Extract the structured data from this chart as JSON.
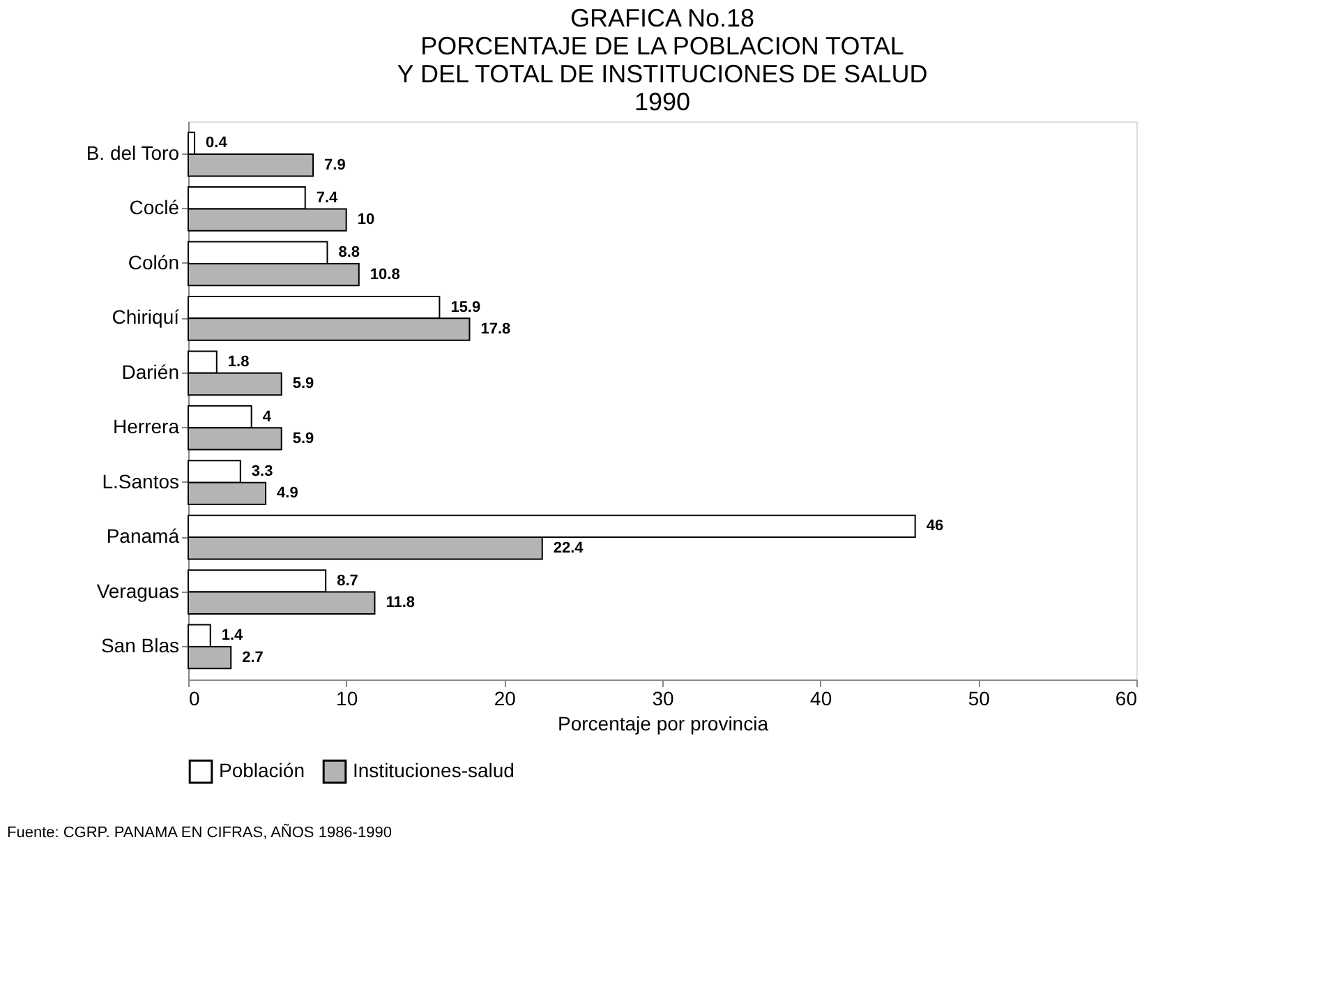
{
  "chart_data": {
    "type": "bar",
    "orientation": "horizontal",
    "title": [
      "GRAFICA No.18",
      "PORCENTAJE DE LA POBLACION TOTAL",
      "Y DEL TOTAL DE INSTITUCIONES DE SALUD",
      "1990"
    ],
    "categories": [
      "B. del Toro",
      "Coclé",
      "Colón",
      "Chiriquí",
      "Darién",
      "Herrera",
      "L.Santos",
      "Panamá",
      "Veraguas",
      "San Blas"
    ],
    "series": [
      {
        "name": "Población",
        "color": "#ffffff",
        "values": [
          0.4,
          7.4,
          8.8,
          15.9,
          1.8,
          4,
          3.3,
          46,
          8.7,
          1.4
        ]
      },
      {
        "name": "Instituciones-salud",
        "color": "#b4b4b4",
        "values": [
          7.9,
          10,
          10.8,
          17.8,
          5.9,
          5.9,
          4.9,
          22.4,
          11.8,
          2.7
        ]
      }
    ],
    "xlabel": "Porcentaje por provincia",
    "xlim": [
      0,
      60
    ],
    "xticks": [
      0,
      10,
      20,
      30,
      40,
      50,
      60
    ],
    "data_labels": true,
    "grid": false,
    "legend": "bottom",
    "annotations": [
      "Fuente: CGRP. PANAMA EN CIFRAS, AÑOS 1986-1990"
    ]
  }
}
